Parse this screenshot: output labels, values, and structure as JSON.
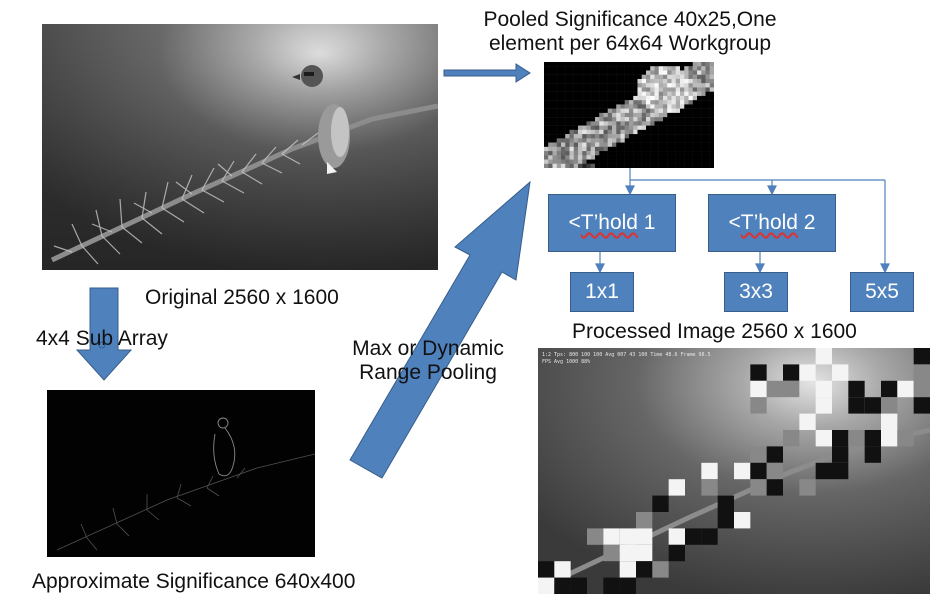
{
  "labels": {
    "pooled_line1": "Pooled Significance 40x25,One",
    "pooled_line2": "element per 64x64 Workgroup",
    "original": "Original  2560 x 1600",
    "sub_array": "4x4 Sub Array",
    "pooling_line1": "Max or Dynamic",
    "pooling_line2": "Range Pooling",
    "processed": "Processed Image 2560 x 1600",
    "approximate": "Approximate Significance 640x400"
  },
  "thresholds": [
    {
      "prefix": "<",
      "underlined": "T’hold",
      "suffix": " 1"
    },
    {
      "prefix": "<",
      "underlined": "T’hold",
      "suffix": " 2"
    }
  ],
  "kernels": [
    "1x1",
    "3x3",
    "5x5"
  ],
  "overlay_text": {
    "line1": "1:2 Tps: 800 100 100 Avg 007  43 100 Time 48.6 Frame 98.5",
    "line2": "FPS Avg 1000 88%"
  },
  "colors": {
    "accent": "#4f81bd",
    "accent_border": "#385d8a",
    "connector": "#4f81bd"
  }
}
